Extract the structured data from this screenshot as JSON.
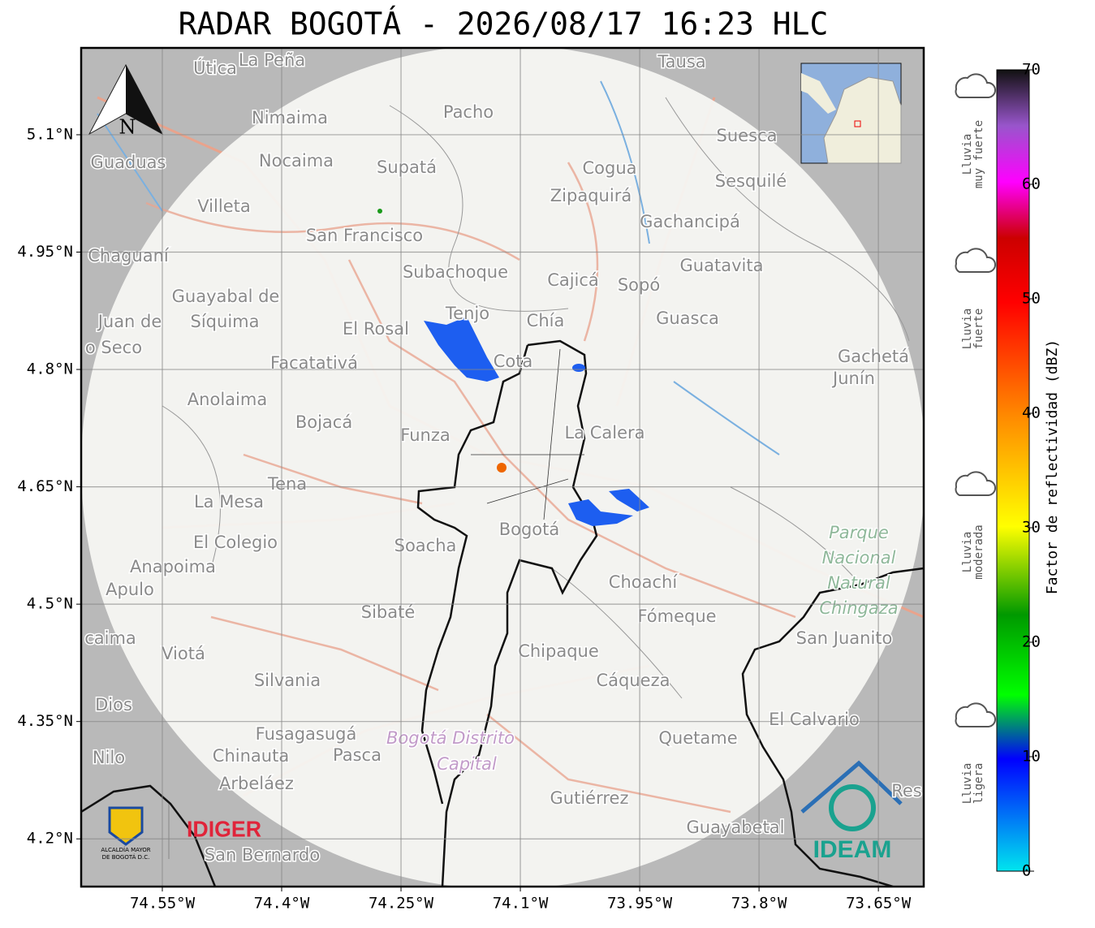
{
  "map": {
    "title": "RADAR BOGOTÁ - 2026/08/17 16:23 HLC",
    "xlim": [
      -74.652,
      -73.593
    ],
    "ylim": [
      4.139,
      5.211
    ],
    "xticks": [
      {
        "value": -74.55,
        "label": "74.55°W"
      },
      {
        "value": -74.4,
        "label": "74.4°W"
      },
      {
        "value": -74.25,
        "label": "74.25°W"
      },
      {
        "value": -74.1,
        "label": "74.1°W"
      },
      {
        "value": -73.95,
        "label": "73.95°W"
      },
      {
        "value": -73.8,
        "label": "73.8°W"
      },
      {
        "value": -73.65,
        "label": "73.65°W"
      }
    ],
    "yticks": [
      {
        "value": 5.1,
        "label": "5.1°N"
      },
      {
        "value": 4.95,
        "label": "4.95°N"
      },
      {
        "value": 4.8,
        "label": "4.8°N"
      },
      {
        "value": 4.65,
        "label": "4.65°N"
      },
      {
        "value": 4.5,
        "label": "4.5°N"
      },
      {
        "value": 4.35,
        "label": "4.35°N"
      },
      {
        "value": 4.2,
        "label": "4.2°N"
      }
    ],
    "places": [
      "Útica",
      "La Peña",
      "Tausa",
      "Pacho",
      "Nimaima",
      "Guaduas",
      "Nocaima",
      "Supatá",
      "Cogua",
      "Suesca",
      "Sesquilé",
      "Villeta",
      "Zipaquirá",
      "Gachancipá",
      "San Francisco",
      "Chaguaní",
      "Subachoque",
      "Cajicá",
      "Sopó",
      "Guatavita",
      "Guayabal de",
      "Síquima",
      "Juan de",
      "o Seco",
      "Tenjo",
      "Chía",
      "Guasca",
      "El Rosal",
      "Facatativá",
      "Cota",
      "Gachetá",
      "Junín",
      "Anolaima",
      "Bojacá",
      "Funza",
      "La Calera",
      "Tena",
      "La Mesa",
      "Soacha",
      "Bogotá",
      "El Colegio",
      "Anapoima",
      "Apulo",
      "Choachí",
      "Sibaté",
      "Fómeque",
      "San Juanito",
      "caima",
      "Viotá",
      "Chipaque",
      "Silvania",
      "Cáqueza",
      "Dios",
      "El Calvario",
      "Fusagasugá",
      "Quetame",
      "Nilo",
      "Chinauta",
      "Pasca",
      "Arbeláez",
      "Gutiérrez",
      "Guayabetal",
      "San Bernardo",
      "Res"
    ],
    "park": [
      "Parque",
      "Nacional",
      "Natural",
      "Chingaza"
    ],
    "district": [
      "Bogotá Distrito",
      "Capital"
    ],
    "north": "N",
    "logos": {
      "alcaldia": [
        "ALCALDÍA MAYOR",
        "DE BOGOTÁ D.C."
      ],
      "idiger": "IDIGER",
      "ideam": "IDEAM"
    }
  },
  "colorbar": {
    "label": "Factor de reflectividad (dBZ)",
    "ticks": [
      0,
      10,
      20,
      30,
      40,
      50,
      60,
      70
    ],
    "categories": [
      [
        "Lluvia",
        "muy fuerte"
      ],
      [
        "Lluvia",
        "fuerte"
      ],
      [
        "Lluvia",
        "moderada"
      ],
      [
        "Lluvia",
        "ligera"
      ]
    ]
  }
}
